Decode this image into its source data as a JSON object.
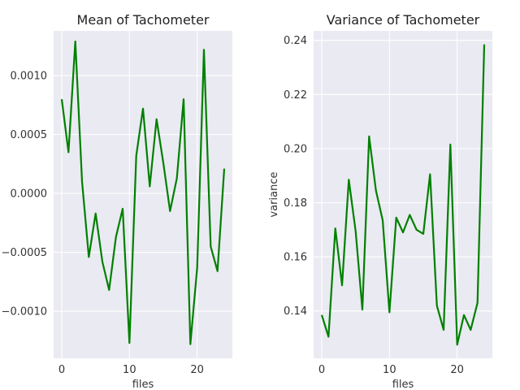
{
  "chart_data": [
    {
      "type": "line",
      "title": "Mean of Tachometer",
      "xlabel": "files",
      "ylabel": "",
      "xlim": [
        -1.2,
        25.2
      ],
      "ylim": [
        -0.0014,
        0.00138
      ],
      "xticks": [
        0,
        10,
        20
      ],
      "xtick_labels": [
        "0",
        "10",
        "20"
      ],
      "yticks": [
        -0.001,
        -0.0005,
        0.0,
        0.0005,
        0.001
      ],
      "ytick_labels": [
        "−0.0010",
        "−0.0005",
        "0.0000",
        "0.0005",
        "0.0010"
      ],
      "grid": true,
      "line_color": "#008000",
      "x": [
        0,
        1,
        2,
        3,
        4,
        5,
        6,
        7,
        8,
        9,
        10,
        11,
        12,
        13,
        14,
        15,
        16,
        17,
        18,
        19,
        20,
        21,
        22,
        23,
        24
      ],
      "values": [
        0.0008,
        0.00035,
        0.00129,
        0.0001,
        -0.00054,
        -0.00017,
        -0.00058,
        -0.00082,
        -0.00037,
        -0.00013,
        -0.00127,
        0.00032,
        0.00072,
        6e-05,
        0.00063,
        0.00026,
        -0.00015,
        0.00013,
        0.0008,
        -0.00128,
        -0.00063,
        0.00122,
        -0.00045,
        -0.00066,
        0.00021
      ]
    },
    {
      "type": "line",
      "title": "Variance of Tachometer",
      "xlabel": "files",
      "ylabel": "variance",
      "xlim": [
        -1.2,
        25.2
      ],
      "ylim": [
        0.1225,
        0.2435
      ],
      "xticks": [
        0,
        10,
        20
      ],
      "xtick_labels": [
        "0",
        "10",
        "20"
      ],
      "yticks": [
        0.14,
        0.16,
        0.18,
        0.2,
        0.22,
        0.24
      ],
      "ytick_labels": [
        "0.14",
        "0.16",
        "0.18",
        "0.20",
        "0.22",
        "0.24"
      ],
      "grid": true,
      "line_color": "#008000",
      "x": [
        0,
        1,
        2,
        3,
        4,
        5,
        6,
        7,
        8,
        9,
        10,
        11,
        12,
        13,
        14,
        15,
        16,
        17,
        18,
        19,
        20,
        21,
        22,
        23,
        24
      ],
      "values": [
        0.1385,
        0.1305,
        0.1705,
        0.1495,
        0.1885,
        0.1695,
        0.1405,
        0.2045,
        0.1845,
        0.1735,
        0.1395,
        0.1745,
        0.169,
        0.1755,
        0.17,
        0.1685,
        0.1905,
        0.142,
        0.133,
        0.2015,
        0.1275,
        0.1385,
        0.133,
        0.143,
        0.2385
      ]
    }
  ]
}
